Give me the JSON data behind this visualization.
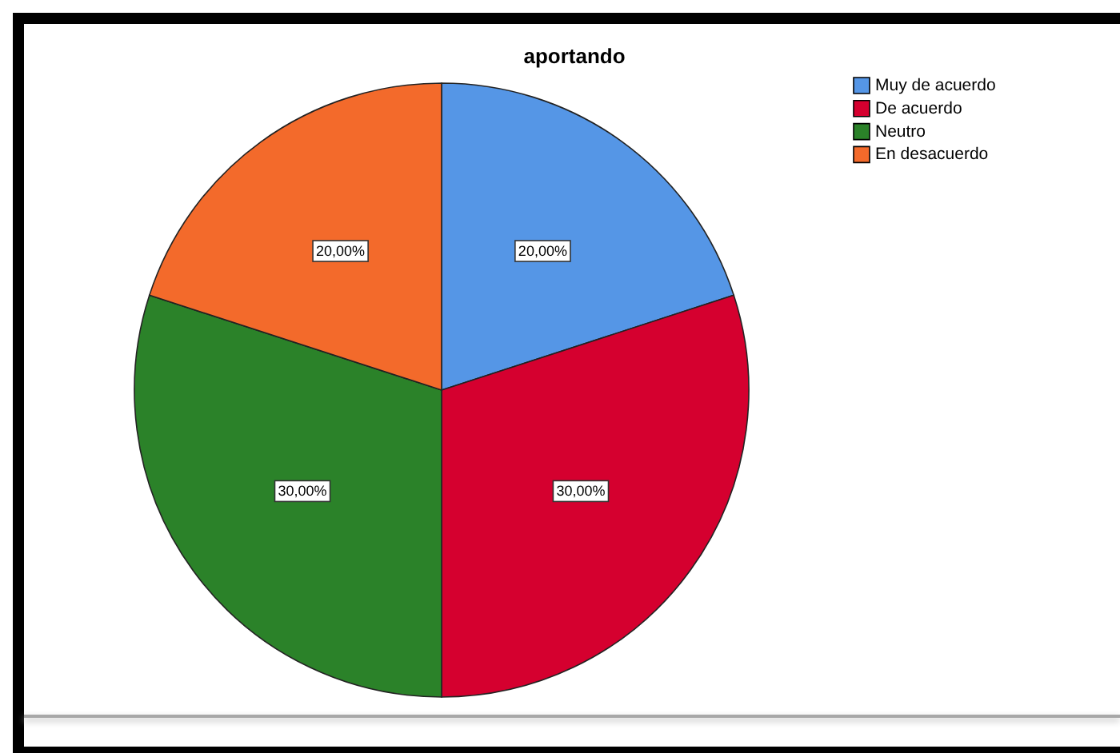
{
  "chart_data": {
    "type": "pie",
    "title": "aportando",
    "categories": [
      "Muy de acuerdo",
      "De acuerdo",
      "Neutro",
      "En desacuerdo"
    ],
    "values": [
      20,
      30,
      30,
      20
    ],
    "colors": [
      "#5596e6",
      "#d5002f",
      "#2b8229",
      "#f36a2b"
    ],
    "value_labels": [
      "20,00%",
      "30,00%",
      "30,00%",
      "20,00%"
    ],
    "legend": "top right"
  }
}
